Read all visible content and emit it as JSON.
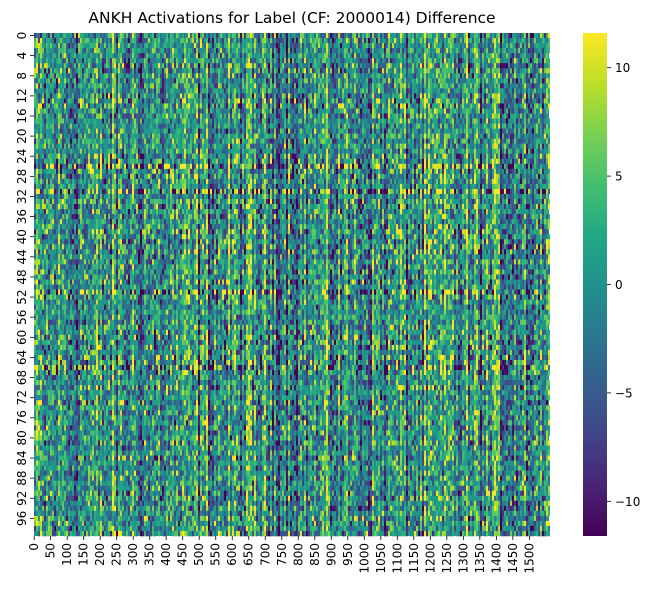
{
  "chart_data": {
    "type": "heatmap",
    "title": "ANKH Activations for Label (CF: 2000014) Difference",
    "xlabel": "",
    "ylabel": "",
    "colormap": "viridis",
    "n_rows": 100,
    "n_cols": 1560,
    "x_ticks": [
      "0",
      "50",
      "100",
      "150",
      "200",
      "250",
      "300",
      "350",
      "400",
      "450",
      "500",
      "550",
      "600",
      "650",
      "700",
      "750",
      "800",
      "850",
      "900",
      "950",
      "1000",
      "1050",
      "1100",
      "1150",
      "1200",
      "1250",
      "1300",
      "1350",
      "1400",
      "1450",
      "1500"
    ],
    "y_ticks": [
      "0",
      "4",
      "8",
      "12",
      "16",
      "20",
      "24",
      "28",
      "32",
      "36",
      "40",
      "44",
      "48",
      "52",
      "56",
      "60",
      "64",
      "68",
      "72",
      "76",
      "80",
      "84",
      "88",
      "92",
      "96"
    ],
    "x_tick_step": 50,
    "y_tick_step": 4,
    "colorbar": {
      "range": [
        -11.6,
        11.6
      ],
      "ticks": [
        {
          "value": 10,
          "label": "10"
        },
        {
          "value": 5,
          "label": "5"
        },
        {
          "value": 0,
          "label": "0"
        },
        {
          "value": -5,
          "label": "−5"
        },
        {
          "value": -10,
          "label": "−10"
        }
      ]
    },
    "highlight_rows": [
      26,
      31,
      51,
      66
    ],
    "grid": false
  }
}
